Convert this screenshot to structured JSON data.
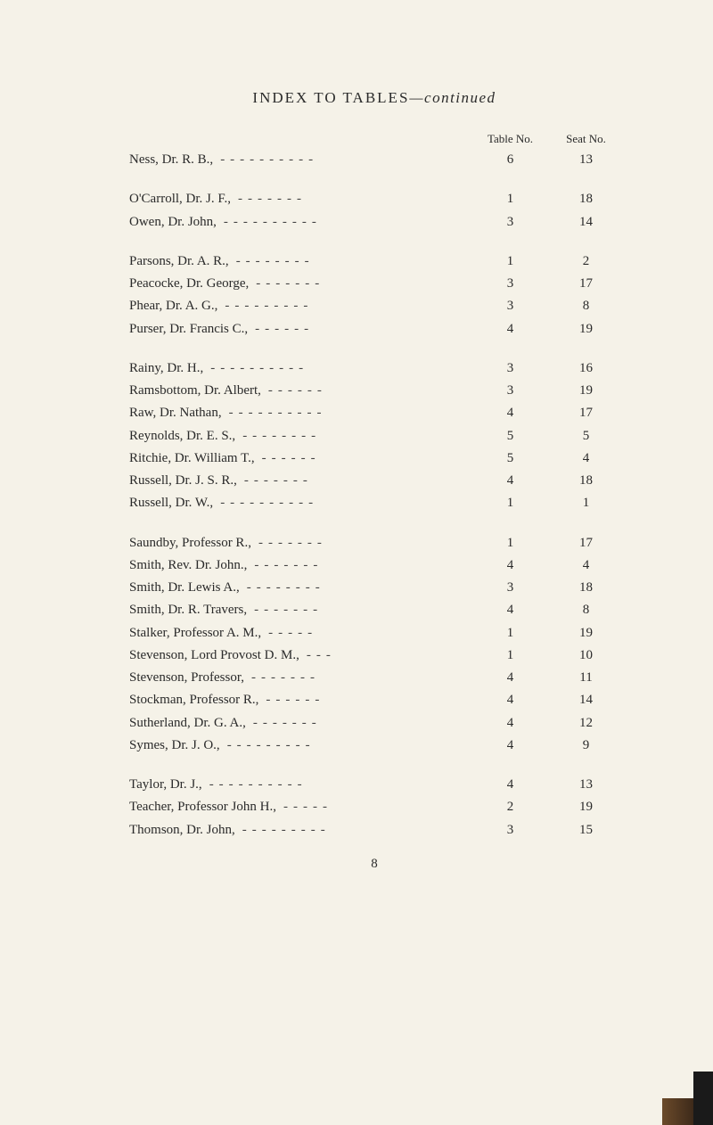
{
  "title_main": "INDEX TO TABLES",
  "title_suffix": "—continued",
  "header": {
    "table_no": "Table No.",
    "seat_no": "Seat No."
  },
  "groups": [
    [
      {
        "name": "Ness, Dr. R. B.,",
        "table": "6",
        "seat": "13"
      }
    ],
    [
      {
        "name": "O'Carroll, Dr. J. F.,",
        "table": "1",
        "seat": "18"
      },
      {
        "name": "Owen, Dr. John,",
        "table": "3",
        "seat": "14"
      }
    ],
    [
      {
        "name": "Parsons, Dr. A. R.,",
        "table": "1",
        "seat": "2"
      },
      {
        "name": "Peacocke, Dr. George,",
        "table": "3",
        "seat": "17"
      },
      {
        "name": "Phear, Dr. A. G.,",
        "table": "3",
        "seat": "8"
      },
      {
        "name": "Purser, Dr. Francis C.,",
        "table": "4",
        "seat": "19"
      }
    ],
    [
      {
        "name": "Rainy, Dr. H.,",
        "table": "3",
        "seat": "16"
      },
      {
        "name": "Ramsbottom, Dr. Albert,",
        "table": "3",
        "seat": "19"
      },
      {
        "name": "Raw, Dr. Nathan,",
        "table": "4",
        "seat": "17"
      },
      {
        "name": "Reynolds, Dr. E. S.,",
        "table": "5",
        "seat": "5"
      },
      {
        "name": "Ritchie, Dr. William T.,",
        "table": "5",
        "seat": "4"
      },
      {
        "name": "Russell, Dr. J. S. R.,",
        "table": "4",
        "seat": "18"
      },
      {
        "name": "Russell, Dr. W.,",
        "table": "1",
        "seat": "1"
      }
    ],
    [
      {
        "name": "Saundby, Professor R.,",
        "table": "1",
        "seat": "17"
      },
      {
        "name": "Smith, Rev. Dr. John.,",
        "table": "4",
        "seat": "4"
      },
      {
        "name": "Smith, Dr. Lewis A.,",
        "table": "3",
        "seat": "18"
      },
      {
        "name": "Smith, Dr. R. Travers,",
        "table": "4",
        "seat": "8"
      },
      {
        "name": "Stalker, Professor A. M.,",
        "table": "1",
        "seat": "19"
      },
      {
        "name": "Stevenson, Lord Provost D. M.,",
        "table": "1",
        "seat": "10"
      },
      {
        "name": "Stevenson, Professor,",
        "table": "4",
        "seat": "11"
      },
      {
        "name": "Stockman, Professor R.,",
        "table": "4",
        "seat": "14"
      },
      {
        "name": "Sutherland, Dr. G. A.,",
        "table": "4",
        "seat": "12"
      },
      {
        "name": "Symes, Dr. J. O.,",
        "table": "4",
        "seat": "9"
      }
    ],
    [
      {
        "name": "Taylor, Dr. J.,",
        "table": "4",
        "seat": "13"
      },
      {
        "name": "Teacher, Professor John H.,",
        "table": "2",
        "seat": "19"
      },
      {
        "name": "Thomson, Dr. John,",
        "table": "3",
        "seat": "15"
      }
    ]
  ],
  "page_number": "8",
  "colors": {
    "background": "#f5f2e8",
    "text": "#2a2a2a",
    "dash": "#444444"
  },
  "fontsize": {
    "title": 17,
    "header": 13,
    "body": 15
  }
}
